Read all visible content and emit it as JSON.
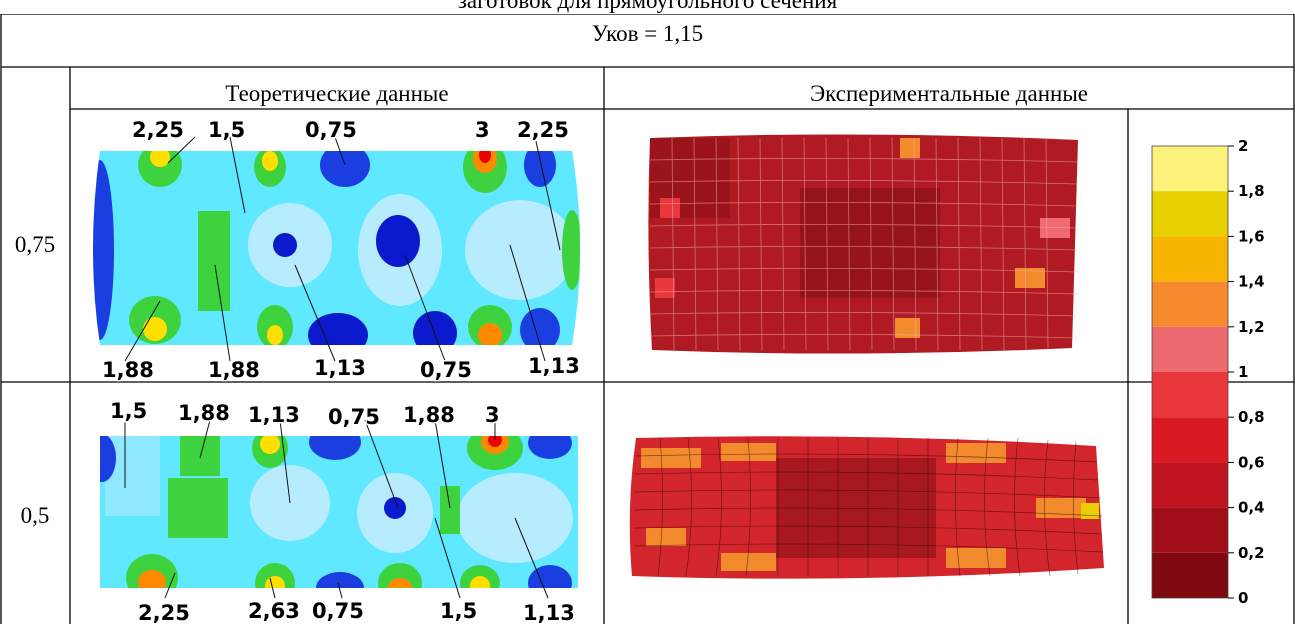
{
  "caption": "заготовок для прямоугольного сечения",
  "header": {
    "ratio": "Уков = 1,15"
  },
  "columns": {
    "theoretical": "Теоретические данные",
    "experimental": "Экспериментальные данные"
  },
  "rows": [
    {
      "label": "0,75",
      "top_labels": [
        "2,25",
        "1,5",
        "0,75",
        "3",
        "2,25"
      ],
      "bottom_labels": [
        "1,88",
        "1,88",
        "1,13",
        "0,75",
        "1,13"
      ]
    },
    {
      "label": "0,5",
      "top_labels": [
        "1,5",
        "1,88",
        "1,13",
        "0,75",
        "1,88",
        "3"
      ],
      "bottom_labels": [
        "2,25",
        "2,63",
        "0,75",
        "1,5",
        "1,13"
      ]
    }
  ],
  "scale": {
    "ticks": [
      "2",
      "1,8",
      "1,6",
      "1,4",
      "1,2",
      "1",
      "0,8",
      "0,6",
      "0,4",
      "0,2",
      "0"
    ],
    "colors": [
      "#fff27a",
      "#e8d000",
      "#f7b400",
      "#f78a2e",
      "#ee6a6e",
      "#e8383c",
      "#d91a22",
      "#c01420",
      "#a30f18",
      "#800a10"
    ]
  }
}
